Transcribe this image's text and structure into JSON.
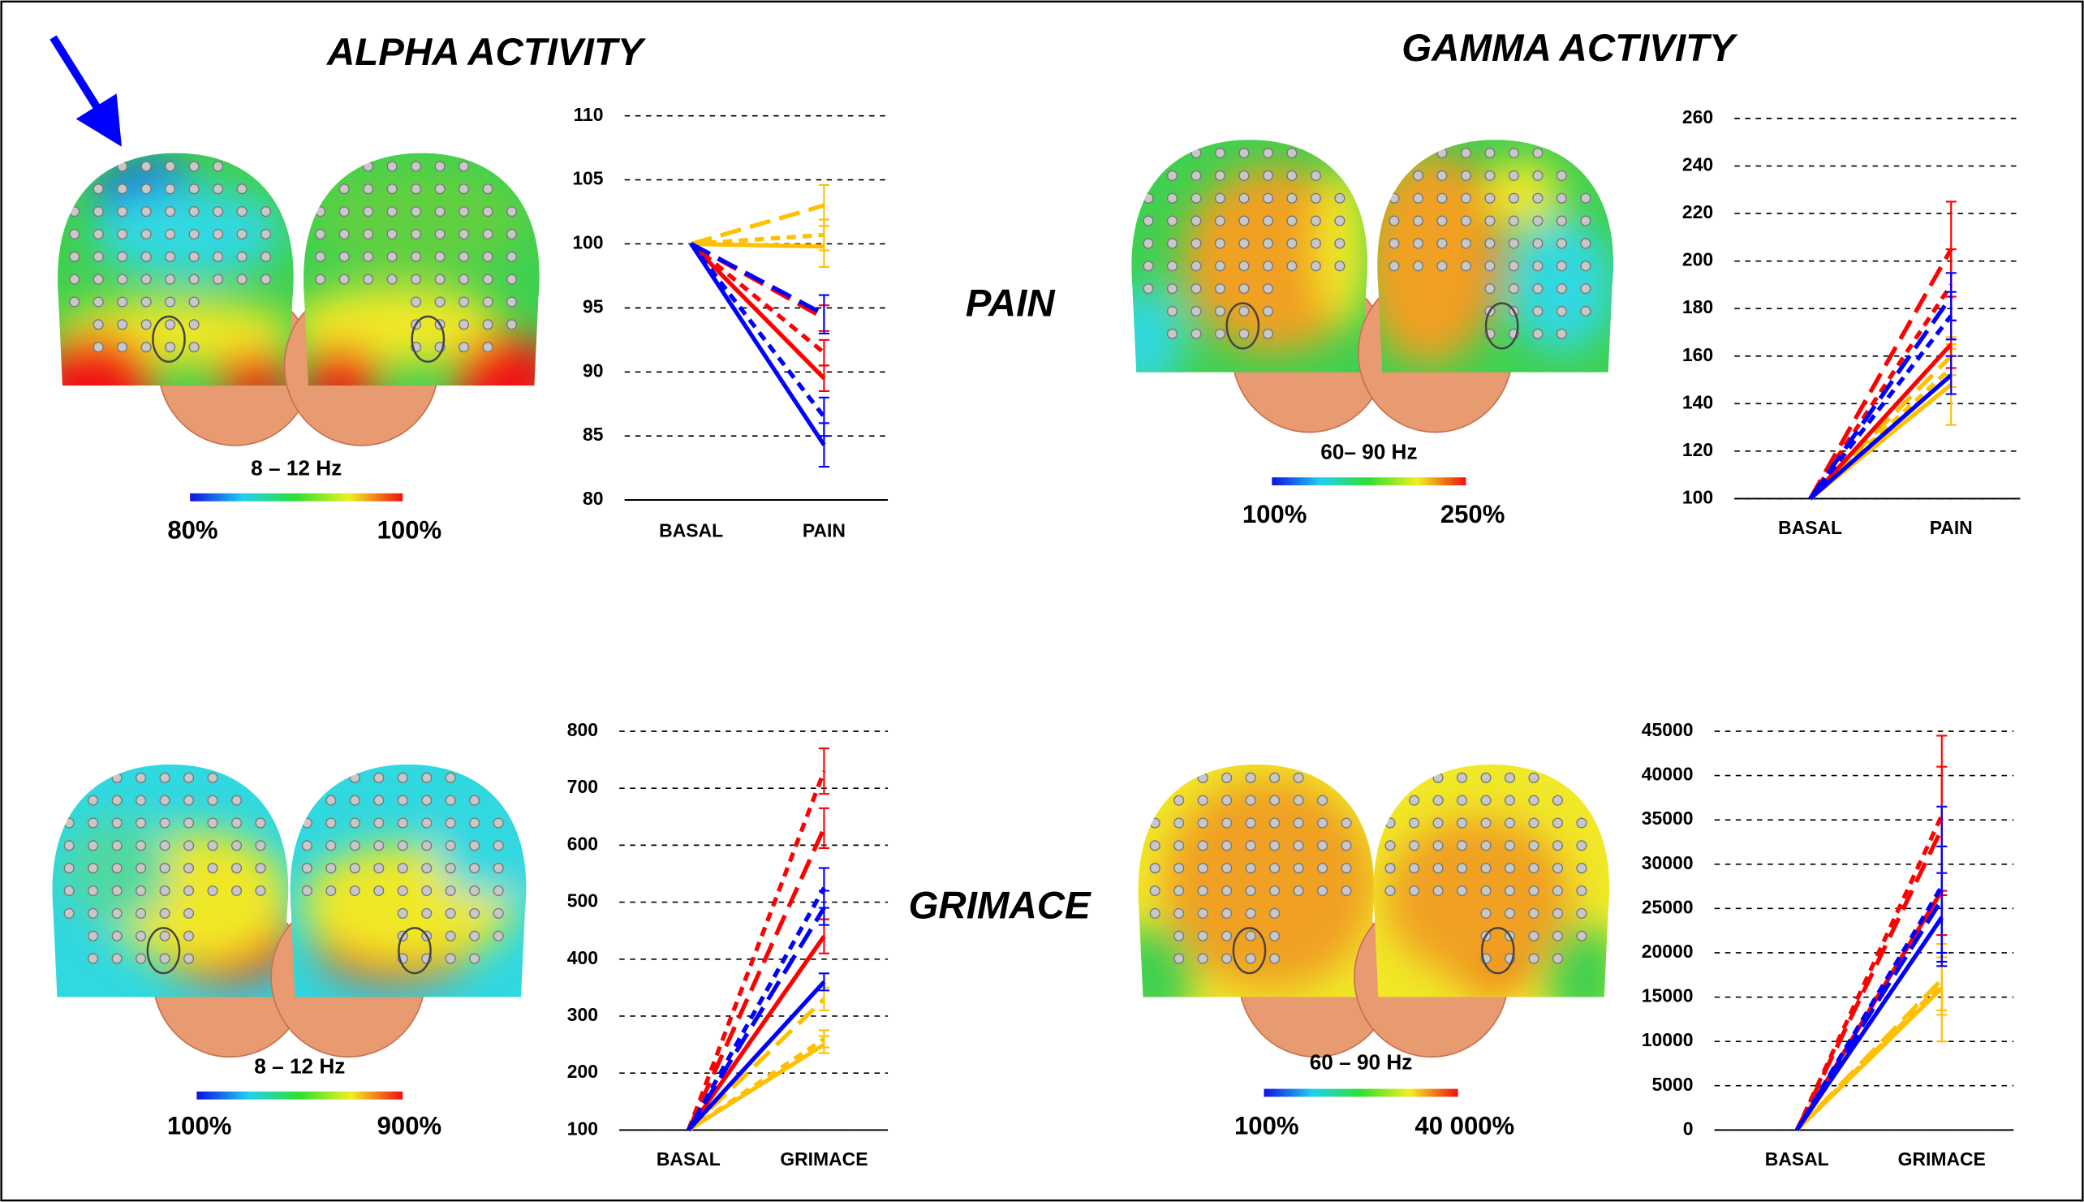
{
  "figure": {
    "column_titles": [
      "ALPHA ACTIVITY",
      "GAMMA ACTIVITY"
    ],
    "row_labels": [
      "PAIN",
      "GRIMACE"
    ],
    "colorbars": [
      {
        "band": "8 – 12 Hz",
        "min": "80%",
        "max": "100%"
      },
      {
        "band": "60– 90 Hz",
        "min": "100%",
        "max": "250%"
      },
      {
        "band": "8 – 12 Hz",
        "min": "100%",
        "max": "900%"
      },
      {
        "band": "60 – 90 Hz",
        "min": "100%",
        "max": "40 000%"
      }
    ]
  },
  "chart_data": [
    {
      "type": "line",
      "categories": [
        "BASAL",
        "PAIN"
      ],
      "ylim": [
        80,
        110
      ],
      "yticks": [
        80,
        85,
        90,
        95,
        100,
        105,
        110
      ],
      "grid": true,
      "series": [
        {
          "color": "#ffc000",
          "dash": "long",
          "values": [
            100,
            103
          ],
          "errors": [
            null,
            1.6
          ]
        },
        {
          "color": "#ffc000",
          "dash": "short",
          "values": [
            100,
            100.7
          ],
          "errors": [
            null,
            1.2
          ]
        },
        {
          "color": "#ffc000",
          "dash": "solid",
          "values": [
            100,
            99.8
          ],
          "errors": [
            null,
            1.6
          ]
        },
        {
          "color": "#ff0000",
          "dash": "long",
          "values": [
            100,
            94.2
          ],
          "errors": [
            null,
            1
          ]
        },
        {
          "color": "#ff0000",
          "dash": "short",
          "values": [
            100,
            91.5
          ],
          "errors": [
            null,
            1
          ]
        },
        {
          "color": "#ff0000",
          "dash": "solid",
          "values": [
            100,
            89.5
          ],
          "errors": [
            null,
            1
          ]
        },
        {
          "color": "#0000ff",
          "dash": "long",
          "values": [
            100,
            94.5
          ],
          "errors": [
            null,
            1.5
          ]
        },
        {
          "color": "#0000ff",
          "dash": "short",
          "values": [
            100,
            86.5
          ],
          "errors": [
            null,
            1.5
          ]
        },
        {
          "color": "#0000ff",
          "dash": "solid",
          "values": [
            100,
            84.3
          ],
          "errors": [
            null,
            1.7
          ]
        }
      ]
    },
    {
      "type": "line",
      "categories": [
        "BASAL",
        "PAIN"
      ],
      "ylim": [
        100,
        260
      ],
      "yticks": [
        100,
        120,
        140,
        160,
        180,
        200,
        220,
        240,
        260
      ],
      "grid": true,
      "series": [
        {
          "color": "#ffc000",
          "dash": "long",
          "values": [
            100,
            160
          ],
          "errors": [
            null,
            8
          ]
        },
        {
          "color": "#ffc000",
          "dash": "short",
          "values": [
            100,
            155
          ],
          "errors": [
            null,
            8
          ]
        },
        {
          "color": "#ffc000",
          "dash": "solid",
          "values": [
            100,
            148
          ],
          "errors": [
            null,
            17
          ]
        },
        {
          "color": "#ff0000",
          "dash": "long",
          "values": [
            100,
            205
          ],
          "errors": [
            null,
            20
          ]
        },
        {
          "color": "#ff0000",
          "dash": "short",
          "values": [
            100,
            190
          ],
          "errors": [
            null,
            15
          ]
        },
        {
          "color": "#ff0000",
          "dash": "solid",
          "values": [
            100,
            165
          ],
          "errors": [
            null,
            10
          ]
        },
        {
          "color": "#0000ff",
          "dash": "long",
          "values": [
            100,
            185
          ],
          "errors": [
            null,
            10
          ]
        },
        {
          "color": "#0000ff",
          "dash": "short",
          "values": [
            100,
            177
          ],
          "errors": [
            null,
            10
          ]
        },
        {
          "color": "#0000ff",
          "dash": "solid",
          "values": [
            100,
            152
          ],
          "errors": [
            null,
            8
          ]
        }
      ]
    },
    {
      "type": "line",
      "categories": [
        "BASAL",
        "GRIMACE"
      ],
      "ylim": [
        100,
        800
      ],
      "yticks": [
        100,
        200,
        300,
        400,
        500,
        600,
        700,
        800
      ],
      "grid": true,
      "series": [
        {
          "color": "#ffc000",
          "dash": "long",
          "values": [
            100,
            330
          ],
          "errors": [
            null,
            20
          ]
        },
        {
          "color": "#ffc000",
          "dash": "short",
          "values": [
            100,
            260
          ],
          "errors": [
            null,
            15
          ]
        },
        {
          "color": "#ffc000",
          "dash": "solid",
          "values": [
            100,
            250
          ],
          "errors": [
            null,
            15
          ]
        },
        {
          "color": "#ff0000",
          "dash": "short",
          "values": [
            100,
            730
          ],
          "errors": [
            null,
            40
          ]
        },
        {
          "color": "#ff0000",
          "dash": "long",
          "values": [
            100,
            630
          ],
          "errors": [
            null,
            35
          ]
        },
        {
          "color": "#ff0000",
          "dash": "solid",
          "values": [
            100,
            440
          ],
          "errors": [
            null,
            30
          ]
        },
        {
          "color": "#0000ff",
          "dash": "short",
          "values": [
            100,
            525
          ],
          "errors": [
            null,
            35
          ]
        },
        {
          "color": "#0000ff",
          "dash": "long",
          "values": [
            100,
            490
          ],
          "errors": [
            null,
            30
          ]
        },
        {
          "color": "#0000ff",
          "dash": "solid",
          "values": [
            100,
            360
          ],
          "errors": [
            null,
            15
          ]
        }
      ]
    },
    {
      "type": "line",
      "categories": [
        "BASAL",
        "GRIMACE"
      ],
      "ylim": [
        0,
        45000
      ],
      "yticks": [
        0,
        5000,
        10000,
        15000,
        20000,
        25000,
        30000,
        35000,
        40000,
        45000
      ],
      "grid": true,
      "series": [
        {
          "color": "#ffc000",
          "dash": "long",
          "values": [
            0,
            17000
          ],
          "errors": [
            null,
            4000
          ]
        },
        {
          "color": "#ffc000",
          "dash": "short",
          "values": [
            0,
            16500
          ],
          "errors": [
            null,
            3000
          ]
        },
        {
          "color": "#ffc000",
          "dash": "solid",
          "values": [
            0,
            16000
          ],
          "errors": [
            null,
            6000
          ]
        },
        {
          "color": "#ff0000",
          "dash": "short",
          "values": [
            0,
            35500
          ],
          "errors": [
            null,
            9000
          ]
        },
        {
          "color": "#ff0000",
          "dash": "long",
          "values": [
            0,
            34000
          ],
          "errors": [
            null,
            7000
          ]
        },
        {
          "color": "#ff0000",
          "dash": "solid",
          "values": [
            0,
            27000
          ],
          "errors": [
            null,
            5000
          ]
        },
        {
          "color": "#0000ff",
          "dash": "short",
          "values": [
            0,
            27500
          ],
          "errors": [
            null,
            9000
          ]
        },
        {
          "color": "#0000ff",
          "dash": "long",
          "values": [
            0,
            26000
          ],
          "errors": [
            null,
            6000
          ]
        },
        {
          "color": "#0000ff",
          "dash": "solid",
          "values": [
            0,
            24000
          ],
          "errors": [
            null,
            5000
          ]
        }
      ]
    }
  ]
}
